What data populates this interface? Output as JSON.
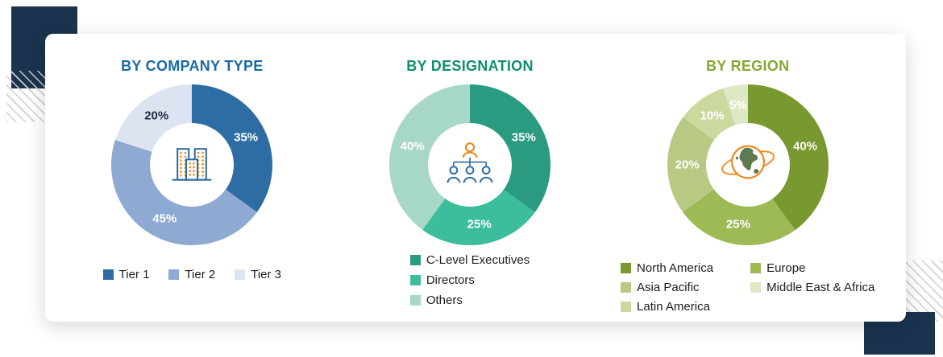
{
  "page": {
    "background": "#ffffff",
    "corner_square_color": "#1a334f",
    "icon_accent_orange": "#ef8a1f",
    "icon_accent_blue": "#2e6da4"
  },
  "charts": [
    {
      "title": "BY COMPANY TYPE",
      "title_color": "#1a6aa5",
      "icon": "buildings-icon",
      "segments": [
        {
          "pct": "35%",
          "value": 35,
          "color": "#2e6da4",
          "pct_color": "#ffffff"
        },
        {
          "pct": "45%",
          "value": 45,
          "color": "#8ea9d2",
          "pct_color": "#ffffff"
        },
        {
          "pct": "20%",
          "value": 20,
          "color": "#dde4f1",
          "pct_color": "#1d2d3e"
        }
      ],
      "legend": {
        "layout": "row",
        "items": [
          {
            "label": "Tier 1",
            "color": "#2e6da4"
          },
          {
            "label": "Tier 2",
            "color": "#8ea9d2"
          },
          {
            "label": "Tier 3",
            "color": "#dde4f1"
          }
        ]
      }
    },
    {
      "title": "BY DESIGNATION",
      "title_color": "#0f8f70",
      "icon": "org-chart-icon",
      "segments": [
        {
          "pct": "35%",
          "value": 35,
          "color": "#2a9a80",
          "pct_color": "#ffffff"
        },
        {
          "pct": "25%",
          "value": 25,
          "color": "#3cbd9c",
          "pct_color": "#ffffff"
        },
        {
          "pct": "40%",
          "value": 40,
          "color": "#a7d7c6",
          "pct_color": "#ffffff"
        }
      ],
      "legend": {
        "layout": "column",
        "items": [
          {
            "label": "C-Level Executives",
            "color": "#2a9a80"
          },
          {
            "label": "Directors",
            "color": "#3cbd9c"
          },
          {
            "label": "Others",
            "color": "#a7d7c6"
          }
        ]
      }
    },
    {
      "title": "BY REGION",
      "title_color": "#86a833",
      "icon": "globe-icon",
      "segments": [
        {
          "pct": "40%",
          "value": 40,
          "color": "#78992f",
          "pct_color": "#ffffff"
        },
        {
          "pct": "25%",
          "value": 25,
          "color": "#9eba55",
          "pct_color": "#ffffff"
        },
        {
          "pct": "20%",
          "value": 20,
          "color": "#b7c983",
          "pct_color": "#ffffff"
        },
        {
          "pct": "10%",
          "value": 10,
          "color": "#cbd99f",
          "pct_color": "#ffffff"
        },
        {
          "pct": "5%",
          "value": 5,
          "color": "#dfe8c4",
          "pct_color": "#ffffff"
        }
      ],
      "legend": {
        "layout": "columns",
        "items": [
          {
            "label": "North America",
            "color": "#78992f"
          },
          {
            "label": "Asia Pacific",
            "color": "#b7c983"
          },
          {
            "label": "Latin America",
            "color": "#cbd99f"
          },
          {
            "label": "Europe",
            "color": "#9eba55"
          },
          {
            "label": "Middle East & Africa",
            "color": "#dfe8c4"
          }
        ]
      }
    }
  ],
  "chart_data": [
    {
      "type": "pie",
      "title": "BY COMPANY TYPE",
      "labels": [
        "Tier 1",
        "Tier 2",
        "Tier 3"
      ],
      "values": [
        35,
        45,
        20
      ],
      "legend_position": "bottom"
    },
    {
      "type": "pie",
      "title": "BY DESIGNATION",
      "labels": [
        "C-Level Executives",
        "Directors",
        "Others"
      ],
      "values": [
        35,
        25,
        40
      ],
      "legend_position": "bottom"
    },
    {
      "type": "pie",
      "title": "BY REGION",
      "labels": [
        "North America",
        "Europe",
        "Asia Pacific",
        "Latin America",
        "Middle East & Africa"
      ],
      "values": [
        40,
        25,
        20,
        10,
        5
      ],
      "legend_position": "bottom"
    }
  ]
}
